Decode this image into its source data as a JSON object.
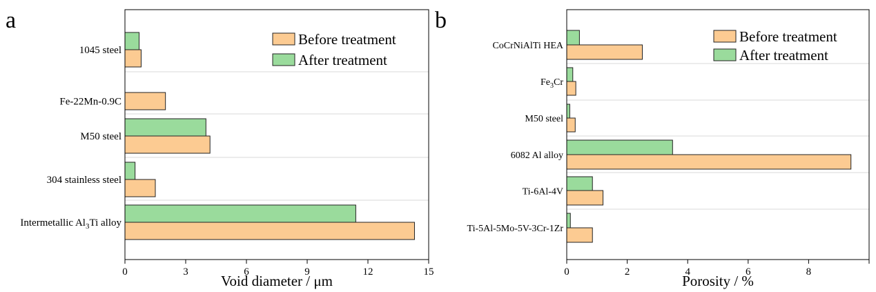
{
  "colors": {
    "before": "#FCCB92",
    "after": "#9ADB9C",
    "bar_edge": "#222222",
    "divider": "#D8D8D8",
    "axis": "#000000"
  },
  "legend": {
    "before": "Before treatment",
    "after": "After treatment"
  },
  "chart_data": [
    {
      "panel_label": "a",
      "type": "bar",
      "orientation": "horizontal",
      "categories": [
        "1045 steel",
        "Fe-22Mn-0.9C",
        "M50 steel",
        "304 stainless steel",
        "Intermetallic Al3Ti alloy"
      ],
      "category_parts": [
        [
          {
            "t": "1045 steel"
          }
        ],
        [
          {
            "t": "Fe-22Mn-0.9C"
          }
        ],
        [
          {
            "t": "M50 steel"
          }
        ],
        [
          {
            "t": "304 stainless steel"
          }
        ],
        [
          {
            "t": "Intermetallic Al"
          },
          {
            "t": "3",
            "sub": true
          },
          {
            "t": "Ti alloy"
          }
        ]
      ],
      "series": [
        {
          "name": "After treatment",
          "key": "after",
          "values": [
            0.7,
            null,
            4.0,
            0.5,
            11.4
          ]
        },
        {
          "name": "Before treatment",
          "key": "before",
          "values": [
            0.8,
            2.0,
            4.2,
            1.5,
            14.3
          ]
        }
      ],
      "xlabel": "Void diameter / μm",
      "xlim": [
        0,
        15
      ],
      "xticks": [
        0,
        3,
        6,
        9,
        12,
        15
      ],
      "grid": false,
      "legend_position": "top-right"
    },
    {
      "panel_label": "b",
      "type": "bar",
      "orientation": "horizontal",
      "categories": [
        "CoCrNiAlTi HEA",
        "Fe3Cr",
        "M50 steel",
        "6082 Al alloy",
        "Ti-6Al-4V",
        "Ti-5Al-5Mo-5V-3Cr-1Zr"
      ],
      "category_parts": [
        [
          {
            "t": "CoCrNiAlTi HEA"
          }
        ],
        [
          {
            "t": "Fe"
          },
          {
            "t": "3",
            "sub": true
          },
          {
            "t": "Cr"
          }
        ],
        [
          {
            "t": "M50 steel"
          }
        ],
        [
          {
            "t": "6082 Al alloy"
          }
        ],
        [
          {
            "t": "Ti-6Al-4V"
          }
        ],
        [
          {
            "t": "Ti-5Al-5Mo-5V-3Cr-1Zr"
          }
        ]
      ],
      "series": [
        {
          "name": "After treatment",
          "key": "after",
          "values": [
            0.42,
            0.2,
            0.1,
            3.5,
            0.85,
            0.12
          ]
        },
        {
          "name": "Before treatment",
          "key": "before",
          "values": [
            2.5,
            0.3,
            0.28,
            9.4,
            1.2,
            0.85
          ]
        }
      ],
      "xlabel": "Porosity / %",
      "xlim": [
        0,
        10
      ],
      "xticks": [
        0,
        2,
        4,
        6,
        8,
        10
      ],
      "xtick_labels": [
        "0",
        "2",
        "4",
        "6",
        "8",
        ""
      ],
      "grid": false,
      "legend_position": "top-right"
    }
  ]
}
